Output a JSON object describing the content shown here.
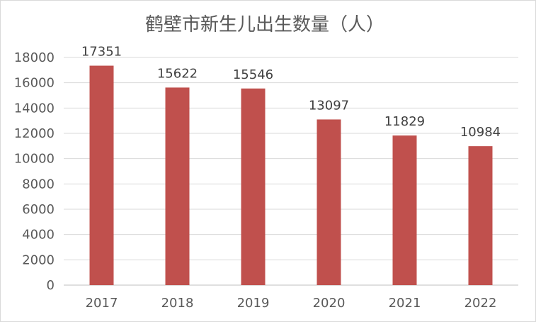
{
  "chart_data": {
    "type": "bar",
    "title": "鹤壁市新生儿出生数量（人）",
    "categories": [
      "2017",
      "2018",
      "2019",
      "2020",
      "2021",
      "2022"
    ],
    "values": [
      17351,
      15622,
      15546,
      13097,
      11829,
      10984
    ],
    "ylim": [
      0,
      18000
    ],
    "yticks": [
      0,
      2000,
      4000,
      6000,
      8000,
      10000,
      12000,
      14000,
      16000,
      18000
    ],
    "xlabel": "",
    "ylabel": "",
    "grid": true,
    "legend": "none",
    "bar_color": "#c0504d"
  }
}
